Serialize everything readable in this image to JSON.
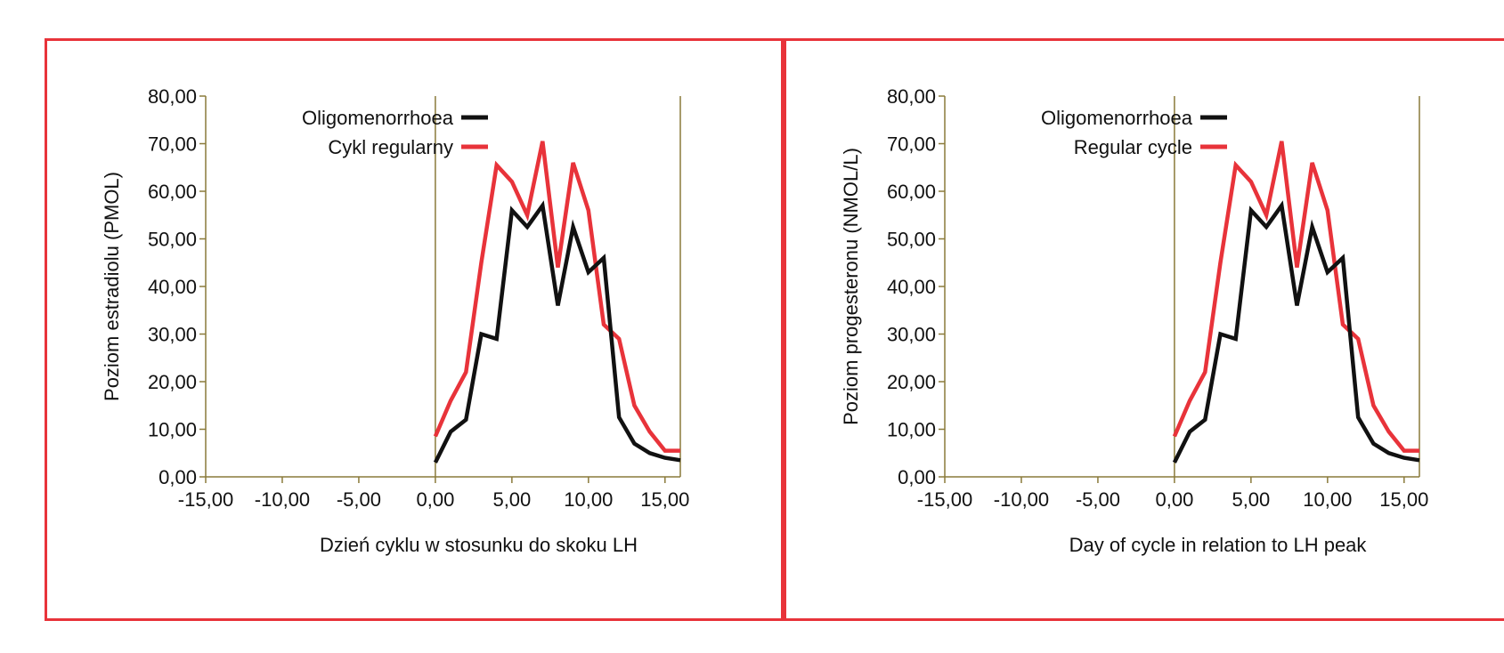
{
  "colors": {
    "border": "#e8333a",
    "axis": "#8a7a3a",
    "oligo": "#111111",
    "regular": "#e8333a"
  },
  "chart_data": [
    {
      "type": "line",
      "x": [
        0,
        1,
        2,
        3,
        4,
        5,
        6,
        7,
        8,
        9,
        10,
        11,
        12,
        13,
        14,
        15,
        16
      ],
      "series": [
        {
          "name": "Oligomenorrhoea",
          "values": [
            3,
            9.5,
            12,
            30,
            29,
            56,
            52.5,
            57,
            36,
            52.5,
            43,
            46,
            12.5,
            7,
            5,
            4,
            3.5
          ]
        },
        {
          "name": "Cykl regularny",
          "values": [
            8.5,
            16,
            22,
            45,
            65.5,
            62,
            55,
            70.5,
            44,
            66,
            56,
            32,
            29,
            15,
            9.5,
            5.5,
            5.5
          ]
        }
      ],
      "ylabel": "Poziom estradiolu (PMOL)",
      "xlabel": "Dzień cyklu w stosunku do skoku LH",
      "xlim": [
        -15,
        16
      ],
      "ylim": [
        0,
        80
      ],
      "xticks": [
        -15,
        -10,
        -5,
        0,
        5,
        10,
        15
      ],
      "yticks": [
        0,
        10,
        20,
        30,
        40,
        50,
        60,
        70,
        80
      ],
      "xtick_labels": [
        "-15,00",
        "-10,00",
        "-5,00",
        "0,00",
        "5,00",
        "10,00",
        "15,00"
      ],
      "ytick_labels": [
        "0,00",
        "10,00",
        "20,00",
        "30,00",
        "40,00",
        "50,00",
        "60,00",
        "70,00",
        "80,00"
      ],
      "legend_position": "top-left",
      "grid": false
    },
    {
      "type": "line",
      "x": [
        0,
        1,
        2,
        3,
        4,
        5,
        6,
        7,
        8,
        9,
        10,
        11,
        12,
        13,
        14,
        15,
        16
      ],
      "series": [
        {
          "name": "Oligomenorrhoea",
          "values": [
            3,
            9.5,
            12,
            30,
            29,
            56,
            52.5,
            57,
            36,
            52.5,
            43,
            46,
            12.5,
            7,
            5,
            4,
            3.5
          ]
        },
        {
          "name": "Regular cycle",
          "values": [
            8.5,
            16,
            22,
            45,
            65.5,
            62,
            55,
            70.5,
            44,
            66,
            56,
            32,
            29,
            15,
            9.5,
            5.5,
            5.5
          ]
        }
      ],
      "ylabel": "Poziom progesteronu (NMOL/L)",
      "xlabel": "Day of cycle in relation to LH peak",
      "xlim": [
        -15,
        16
      ],
      "ylim": [
        0,
        80
      ],
      "xticks": [
        -15,
        -10,
        -5,
        0,
        5,
        10,
        15
      ],
      "yticks": [
        0,
        10,
        20,
        30,
        40,
        50,
        60,
        70,
        80
      ],
      "xtick_labels": [
        "-15,00",
        "-10,00",
        "-5,00",
        "0,00",
        "5,00",
        "10,00",
        "15,00"
      ],
      "ytick_labels": [
        "0,00",
        "10,00",
        "20,00",
        "30,00",
        "40,00",
        "50,00",
        "60,00",
        "70,00",
        "80,00"
      ],
      "legend_position": "top-left",
      "grid": false
    }
  ]
}
